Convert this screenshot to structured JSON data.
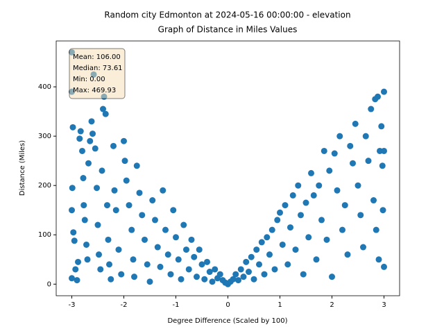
{
  "chart_data": {
    "type": "scatter",
    "title": "Random city Edmonton at 2024-05-16 00:00:00  - elevation",
    "subtitle": "Graph of Distance in Miles Values",
    "x_label": "Degree Difference (Scaled by 100)",
    "y_label": "Distance (Miles)",
    "annotation": [
      "Mean: 106.00",
      "Median: 73.61",
      "Min: 0.00",
      "Max: 469.93"
    ],
    "color": "#1f77b4",
    "xlim": [
      -3.3,
      3.3
    ],
    "xticks": [
      -3,
      -2,
      -1,
      0,
      1,
      2,
      3
    ],
    "ylim": [
      -23.5,
      493
    ],
    "yticks": [
      0,
      100,
      200,
      300,
      400
    ],
    "x": [
      -3.0,
      -3.0,
      -2.98,
      -2.99,
      -3.0,
      -2.97,
      -2.95,
      -2.93,
      -3.0,
      -2.9,
      -2.88,
      -2.85,
      -2.83,
      -2.8,
      -2.78,
      -2.77,
      -2.75,
      -2.72,
      -2.7,
      -2.68,
      -2.65,
      -2.62,
      -2.6,
      -2.58,
      -2.55,
      -2.52,
      -2.5,
      -2.48,
      -2.45,
      -2.42,
      -2.4,
      -2.38,
      -2.35,
      -2.32,
      -2.3,
      -2.28,
      -2.25,
      -2.2,
      -2.18,
      -2.15,
      -2.1,
      -2.05,
      -2.0,
      -1.98,
      -1.95,
      -1.9,
      -1.85,
      -1.82,
      -1.8,
      -1.75,
      -1.7,
      -1.65,
      -1.6,
      -1.55,
      -1.5,
      -1.45,
      -1.4,
      -1.35,
      -1.3,
      -1.25,
      -1.2,
      -1.15,
      -1.1,
      -1.05,
      -1.0,
      -0.95,
      -0.9,
      -0.85,
      -0.8,
      -0.75,
      -0.7,
      -0.65,
      -0.6,
      -0.55,
      -0.5,
      -0.45,
      -0.4,
      -0.35,
      -0.3,
      -0.25,
      -0.2,
      -0.15,
      -0.1,
      -0.05,
      0.0,
      0.05,
      0.1,
      0.15,
      0.2,
      0.25,
      0.3,
      0.35,
      0.4,
      0.45,
      0.5,
      0.55,
      0.6,
      0.65,
      0.7,
      0.75,
      0.8,
      0.85,
      0.9,
      0.95,
      1.0,
      1.05,
      1.1,
      1.15,
      1.2,
      1.25,
      1.3,
      1.35,
      1.4,
      1.45,
      1.5,
      1.55,
      1.6,
      1.65,
      1.7,
      1.75,
      1.8,
      1.85,
      1.9,
      1.95,
      2.0,
      2.05,
      2.1,
      2.15,
      2.2,
      2.25,
      2.3,
      2.35,
      2.4,
      2.45,
      2.5,
      2.55,
      2.6,
      2.65,
      2.7,
      2.75,
      2.8,
      2.83,
      2.85,
      2.88,
      2.9,
      2.92,
      2.95,
      2.97,
      3.0,
      3.0,
      3.0,
      2.98
    ],
    "values": [
      470,
      390,
      318,
      195,
      150,
      105,
      88,
      30,
      12,
      8,
      45,
      295,
      310,
      270,
      215,
      160,
      130,
      80,
      50,
      245,
      290,
      330,
      305,
      425,
      275,
      195,
      120,
      60,
      30,
      230,
      355,
      380,
      345,
      160,
      90,
      40,
      10,
      280,
      190,
      150,
      70,
      20,
      290,
      250,
      210,
      160,
      110,
      50,
      15,
      240,
      185,
      140,
      90,
      40,
      5,
      170,
      130,
      75,
      35,
      190,
      110,
      60,
      20,
      150,
      95,
      50,
      10,
      120,
      70,
      30,
      90,
      55,
      15,
      70,
      40,
      10,
      45,
      25,
      5,
      30,
      12,
      20,
      8,
      3,
      0,
      5,
      10,
      20,
      8,
      30,
      15,
      45,
      25,
      55,
      10,
      70,
      40,
      85,
      20,
      95,
      60,
      110,
      30,
      130,
      145,
      80,
      160,
      40,
      115,
      180,
      70,
      200,
      140,
      20,
      165,
      95,
      225,
      180,
      50,
      200,
      130,
      270,
      90,
      230,
      15,
      265,
      190,
      300,
      110,
      160,
      60,
      280,
      245,
      325,
      200,
      140,
      75,
      300,
      250,
      355,
      170,
      375,
      110,
      380,
      50,
      270,
      320,
      240,
      390,
      35,
      270,
      150
    ]
  }
}
